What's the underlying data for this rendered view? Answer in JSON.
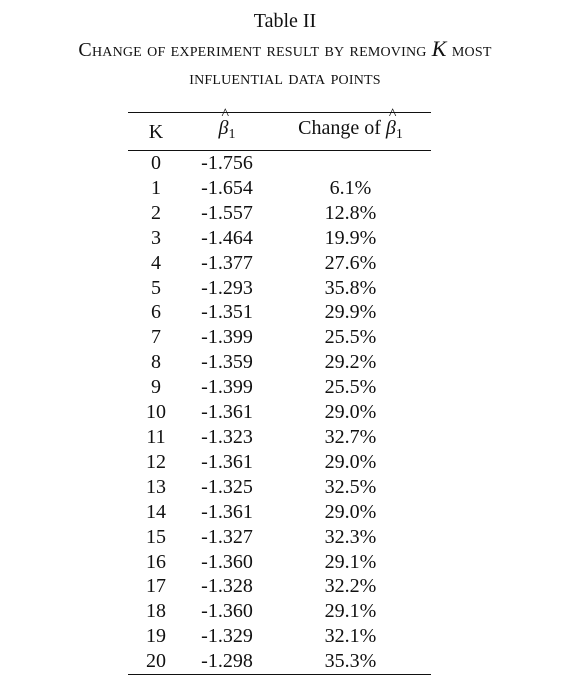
{
  "table_label": "Table II",
  "caption": {
    "line1_prefix": "Change of experiment result by removing",
    "line1_var": "K",
    "line1_suffix": "most",
    "line2": "influential data points"
  },
  "headers": {
    "k": "K",
    "beta_symbol": "β",
    "beta_hat": "^",
    "beta_sub": "1",
    "change_prefix": "Change of"
  },
  "rows": [
    {
      "k": "0",
      "beta": "-1.756",
      "change": ""
    },
    {
      "k": "1",
      "beta": "-1.654",
      "change": "6.1%"
    },
    {
      "k": "2",
      "beta": "-1.557",
      "change": "12.8%"
    },
    {
      "k": "3",
      "beta": "-1.464",
      "change": "19.9%"
    },
    {
      "k": "4",
      "beta": "-1.377",
      "change": "27.6%"
    },
    {
      "k": "5",
      "beta": "-1.293",
      "change": "35.8%"
    },
    {
      "k": "6",
      "beta": "-1.351",
      "change": "29.9%"
    },
    {
      "k": "7",
      "beta": "-1.399",
      "change": "25.5%"
    },
    {
      "k": "8",
      "beta": "-1.359",
      "change": "29.2%"
    },
    {
      "k": "9",
      "beta": "-1.399",
      "change": "25.5%"
    },
    {
      "k": "10",
      "beta": "-1.361",
      "change": "29.0%"
    },
    {
      "k": "11",
      "beta": "-1.323",
      "change": "32.7%"
    },
    {
      "k": "12",
      "beta": "-1.361",
      "change": "29.0%"
    },
    {
      "k": "13",
      "beta": "-1.325",
      "change": "32.5%"
    },
    {
      "k": "14",
      "beta": "-1.361",
      "change": "29.0%"
    },
    {
      "k": "15",
      "beta": "-1.327",
      "change": "32.3%"
    },
    {
      "k": "16",
      "beta": "-1.360",
      "change": "29.1%"
    },
    {
      "k": "17",
      "beta": "-1.328",
      "change": "32.2%"
    },
    {
      "k": "18",
      "beta": "-1.360",
      "change": "29.1%"
    },
    {
      "k": "19",
      "beta": "-1.329",
      "change": "32.1%"
    },
    {
      "k": "20",
      "beta": "-1.298",
      "change": "35.3%"
    }
  ]
}
